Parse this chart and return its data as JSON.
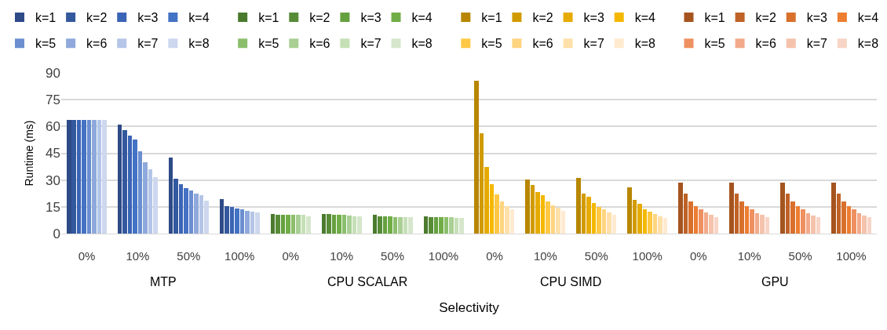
{
  "chart_data": {
    "type": "bar",
    "xlabel": "Selectivity",
    "ylabel": "Runtime (ms)",
    "categories": [
      "0%",
      "10%",
      "50%",
      "100%",
      "0%",
      "10%",
      "50%",
      "100%",
      "0%",
      "10%",
      "50%",
      "100%",
      "0%",
      "10%",
      "50%",
      "100%"
    ],
    "annotations": [
      "MTP",
      "CPU SCALAR",
      "CPU SIMD",
      "GPU"
    ],
    "ylim": [
      0,
      90
    ],
    "yticks": [
      0,
      15,
      30,
      45,
      60,
      75,
      90
    ],
    "grid": "y",
    "legend": "top",
    "series": [
      {
        "name": "k=1",
        "color": "#2e4a87",
        "values": [
          63.5,
          61.2,
          42.5,
          19.5,
          null,
          null,
          null,
          null,
          null,
          null,
          null,
          null,
          null,
          null,
          null,
          null
        ]
      },
      {
        "name": "k=2",
        "color": "#33589e",
        "values": [
          63.5,
          57.8,
          30.8,
          15.3,
          null,
          null,
          null,
          null,
          null,
          null,
          null,
          null,
          null,
          null,
          null,
          null
        ]
      },
      {
        "name": "k=3",
        "color": "#3a64b5",
        "values": [
          63.5,
          54.8,
          27.6,
          14.9,
          null,
          null,
          null,
          null,
          null,
          null,
          null,
          null,
          null,
          null,
          null,
          null
        ]
      },
      {
        "name": "k=4",
        "color": "#4472c4",
        "values": [
          63.5,
          52.7,
          25.6,
          13.9,
          null,
          null,
          null,
          null,
          null,
          null,
          null,
          null,
          null,
          null,
          null,
          null
        ]
      },
      {
        "name": "k=5",
        "color": "#6a8ed0",
        "values": [
          63.5,
          46.2,
          24.0,
          13.4,
          null,
          null,
          null,
          null,
          null,
          null,
          null,
          null,
          null,
          null,
          null,
          null
        ]
      },
      {
        "name": "k=6",
        "color": "#8fa9dc",
        "values": [
          63.5,
          39.9,
          22.6,
          12.8,
          null,
          null,
          null,
          null,
          null,
          null,
          null,
          null,
          null,
          null,
          null,
          null
        ]
      },
      {
        "name": "k=7",
        "color": "#b4c5e7",
        "values": [
          63.5,
          35.9,
          21.4,
          12.4,
          null,
          null,
          null,
          null,
          null,
          null,
          null,
          null,
          null,
          null,
          null,
          null
        ]
      },
      {
        "name": "k=8",
        "color": "#cdd7ee",
        "values": [
          63.5,
          31.8,
          18.5,
          11.8,
          null,
          null,
          null,
          null,
          null,
          null,
          null,
          null,
          null,
          null,
          null,
          null
        ]
      },
      {
        "name": "k=1",
        "color": "#4b7a2f",
        "values": [
          null,
          null,
          null,
          null,
          10.8,
          10.8,
          10.4,
          9.7,
          null,
          null,
          null,
          null,
          null,
          null,
          null,
          null
        ]
      },
      {
        "name": "k=2",
        "color": "#578c36",
        "values": [
          null,
          null,
          null,
          null,
          10.4,
          10.8,
          9.8,
          9.2,
          null,
          null,
          null,
          null,
          null,
          null,
          null,
          null
        ]
      },
      {
        "name": "k=3",
        "color": "#65a03f",
        "values": [
          null,
          null,
          null,
          null,
          10.4,
          10.4,
          9.8,
          9.2,
          null,
          null,
          null,
          null,
          null,
          null,
          null,
          null
        ]
      },
      {
        "name": "k=4",
        "color": "#70ad47",
        "values": [
          null,
          null,
          null,
          null,
          10.4,
          10.4,
          9.8,
          9.2,
          null,
          null,
          null,
          null,
          null,
          null,
          null,
          null
        ]
      },
      {
        "name": "k=5",
        "color": "#8bbe6c",
        "values": [
          null,
          null,
          null,
          null,
          10.4,
          10.4,
          9.2,
          9.2,
          null,
          null,
          null,
          null,
          null,
          null,
          null,
          null
        ]
      },
      {
        "name": "k=6",
        "color": "#a9cf94",
        "values": [
          null,
          null,
          null,
          null,
          10.4,
          10.2,
          9.2,
          9.2,
          null,
          null,
          null,
          null,
          null,
          null,
          null,
          null
        ]
      },
      {
        "name": "k=7",
        "color": "#c5dfb6",
        "values": [
          null,
          null,
          null,
          null,
          10.4,
          9.8,
          9.2,
          8.7,
          null,
          null,
          null,
          null,
          null,
          null,
          null,
          null
        ]
      },
      {
        "name": "k=8",
        "color": "#d6e6cc",
        "values": [
          null,
          null,
          null,
          null,
          9.8,
          9.8,
          9.2,
          8.7,
          null,
          null,
          null,
          null,
          null,
          null,
          null,
          null
        ]
      },
      {
        "name": "k=1",
        "color": "#b88600",
        "values": [
          null,
          null,
          null,
          null,
          null,
          null,
          null,
          null,
          85.4,
          30.3,
          31.1,
          26.1,
          null,
          null,
          null,
          null
        ]
      },
      {
        "name": "k=2",
        "color": "#d19b00",
        "values": [
          null,
          null,
          null,
          null,
          null,
          null,
          null,
          null,
          56.3,
          27.1,
          22.6,
          19.0,
          null,
          null,
          null,
          null
        ]
      },
      {
        "name": "k=3",
        "color": "#e6ab00",
        "values": [
          null,
          null,
          null,
          null,
          null,
          null,
          null,
          null,
          37.4,
          23.2,
          20.6,
          16.5,
          null,
          null,
          null,
          null
        ]
      },
      {
        "name": "k=4",
        "color": "#f5b800",
        "values": [
          null,
          null,
          null,
          null,
          null,
          null,
          null,
          null,
          27.7,
          21.4,
          17.3,
          13.8,
          null,
          null,
          null,
          null
        ]
      },
      {
        "name": "k=5",
        "color": "#ffc844",
        "values": [
          null,
          null,
          null,
          null,
          null,
          null,
          null,
          null,
          22.0,
          18.0,
          14.9,
          12.2,
          null,
          null,
          null,
          null
        ]
      },
      {
        "name": "k=6",
        "color": "#ffd47f",
        "values": [
          null,
          null,
          null,
          null,
          null,
          null,
          null,
          null,
          18.0,
          15.9,
          13.4,
          10.8,
          null,
          null,
          null,
          null
        ]
      },
      {
        "name": "k=7",
        "color": "#ffe0a8",
        "values": [
          null,
          null,
          null,
          null,
          null,
          null,
          null,
          null,
          15.3,
          14.3,
          11.8,
          9.7,
          null,
          null,
          null,
          null
        ]
      },
      {
        "name": "k=8",
        "color": "#ffead0",
        "values": [
          null,
          null,
          null,
          null,
          null,
          null,
          null,
          null,
          13.4,
          12.8,
          10.4,
          8.8,
          null,
          null,
          null,
          null
        ]
      },
      {
        "name": "k=1",
        "color": "#a5541f",
        "values": [
          null,
          null,
          null,
          null,
          null,
          null,
          null,
          null,
          null,
          null,
          null,
          null,
          28.7,
          28.7,
          28.7,
          28.7
        ]
      },
      {
        "name": "k=2",
        "color": "#bf6226",
        "values": [
          null,
          null,
          null,
          null,
          null,
          null,
          null,
          null,
          null,
          null,
          null,
          null,
          22.6,
          22.6,
          22.6,
          22.6
        ]
      },
      {
        "name": "k=3",
        "color": "#d8702c",
        "values": [
          null,
          null,
          null,
          null,
          null,
          null,
          null,
          null,
          null,
          null,
          null,
          null,
          18.0,
          18.0,
          18.0,
          18.0
        ]
      },
      {
        "name": "k=4",
        "color": "#ed7d31",
        "values": [
          null,
          null,
          null,
          null,
          null,
          null,
          null,
          null,
          null,
          null,
          null,
          null,
          15.5,
          15.5,
          15.5,
          15.5
        ]
      },
      {
        "name": "k=5",
        "color": "#ef9060",
        "values": [
          null,
          null,
          null,
          null,
          null,
          null,
          null,
          null,
          null,
          null,
          null,
          null,
          13.4,
          13.4,
          13.4,
          13.4
        ]
      },
      {
        "name": "k=6",
        "color": "#f2aa8a",
        "values": [
          null,
          null,
          null,
          null,
          null,
          null,
          null,
          null,
          null,
          null,
          null,
          null,
          11.9,
          11.4,
          11.4,
          11.4
        ]
      },
      {
        "name": "k=7",
        "color": "#f5c2ab",
        "values": [
          null,
          null,
          null,
          null,
          null,
          null,
          null,
          null,
          null,
          null,
          null,
          null,
          10.4,
          10.4,
          10.2,
          10.2
        ]
      },
      {
        "name": "k=8",
        "color": "#f8d4c6",
        "values": [
          null,
          null,
          null,
          null,
          null,
          null,
          null,
          null,
          null,
          null,
          null,
          null,
          9.2,
          9.2,
          9.2,
          9.2
        ]
      }
    ]
  }
}
